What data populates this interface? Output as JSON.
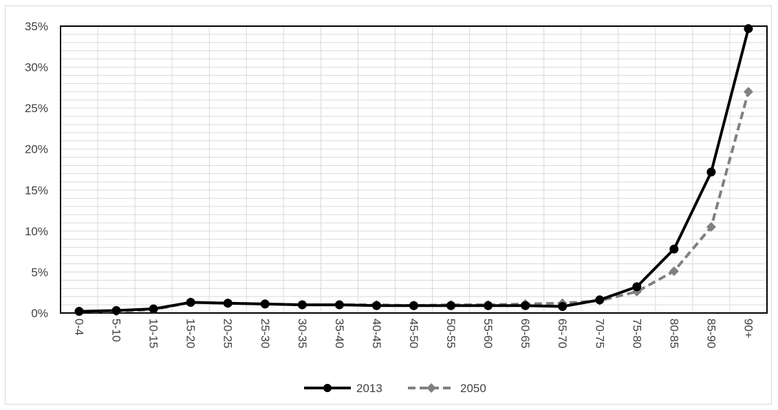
{
  "chart_data": {
    "type": "line",
    "title": "",
    "xlabel": "",
    "ylabel": "",
    "categories": [
      "0-4",
      "5-10",
      "10-15",
      "15-20",
      "20-25",
      "25-30",
      "30-35",
      "35-40",
      "40-45",
      "45-50",
      "50-55",
      "55-60",
      "60-65",
      "65-70",
      "70-75",
      "75-80",
      "80-85",
      "85-90",
      "90+"
    ],
    "ylim": [
      0,
      35
    ],
    "y_ticks": [
      "0%",
      "5%",
      "10%",
      "15%",
      "20%",
      "25%",
      "30%",
      "35%"
    ],
    "y_tick_values": [
      0,
      5,
      10,
      15,
      20,
      25,
      30,
      35
    ],
    "grid": true,
    "legend_position": "bottom",
    "series": [
      {
        "name": "2013",
        "color": "#000000",
        "style": "solid",
        "marker": "circle",
        "values": [
          0.2,
          0.3,
          0.5,
          1.3,
          1.2,
          1.1,
          1.0,
          1.0,
          0.9,
          0.9,
          0.9,
          0.9,
          0.9,
          0.8,
          1.6,
          3.2,
          7.8,
          17.2,
          34.7
        ]
      },
      {
        "name": "2050",
        "color": "#808080",
        "style": "dashed",
        "marker": "diamond",
        "values": [
          0.2,
          0.2,
          0.4,
          1.3,
          1.2,
          1.1,
          1.0,
          1.0,
          1.0,
          0.9,
          1.0,
          1.0,
          1.1,
          1.2,
          1.5,
          2.6,
          5.1,
          10.5,
          27.0
        ]
      }
    ]
  }
}
